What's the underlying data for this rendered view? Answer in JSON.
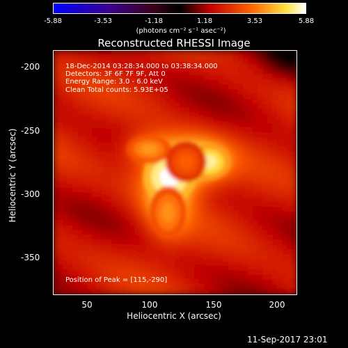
{
  "colorbar": {
    "ticks": [
      "-5.88",
      "-3.53",
      "-1.18",
      "1.18",
      "3.53",
      "5.88"
    ],
    "units": "(photons cm⁻² s⁻¹ asec⁻²)",
    "range": [
      -5.88,
      5.88
    ]
  },
  "plot": {
    "title": "Reconstructed RHESSI Image",
    "annotations": {
      "line1": "18-Dec-2014 03:28:34.000 to 03:38:34.000",
      "line2": "Detectors: 3F 6F 7F 9F, Att 0",
      "line3": "Energy Range: 3.0 - 6.0 keV",
      "line4": "Clean    Total counts: 5.93E+05",
      "peak": "Position of Peak = [115,-290]"
    }
  },
  "timestamp": "11-Sep-2017 23:01",
  "chart_data": {
    "type": "heatmap",
    "title": "Reconstructed RHESSI Image",
    "xlabel": "Heliocentric X (arcsec)",
    "ylabel": "Heliocentric Y (arcsec)",
    "xlim": [
      24,
      215
    ],
    "ylim": [
      -383,
      -190
    ],
    "x_ticks": [
      "50",
      "100",
      "150",
      "200"
    ],
    "y_ticks": [
      "-200",
      "-250",
      "-300",
      "-350"
    ],
    "colormap": "hot",
    "value_range": [
      -5.88,
      5.88
    ],
    "background_level": 1.8,
    "sources": [
      {
        "x": 115,
        "y": -290,
        "peak": 5.88,
        "sigma_x": 13,
        "sigma_y": 13
      },
      {
        "x": 146,
        "y": -278,
        "peak": 5.4,
        "sigma_x": 11,
        "sigma_y": 9
      },
      {
        "x": 99,
        "y": -268,
        "peak": 4.0,
        "sigma_x": 11,
        "sigma_y": 7
      },
      {
        "x": 114,
        "y": -318,
        "peak": 3.9,
        "sigma_x": 9,
        "sigma_y": 13
      },
      {
        "x": 128,
        "y": -278,
        "peak": 3.2,
        "sigma_x": 10,
        "sigma_y": 10
      }
    ]
  }
}
